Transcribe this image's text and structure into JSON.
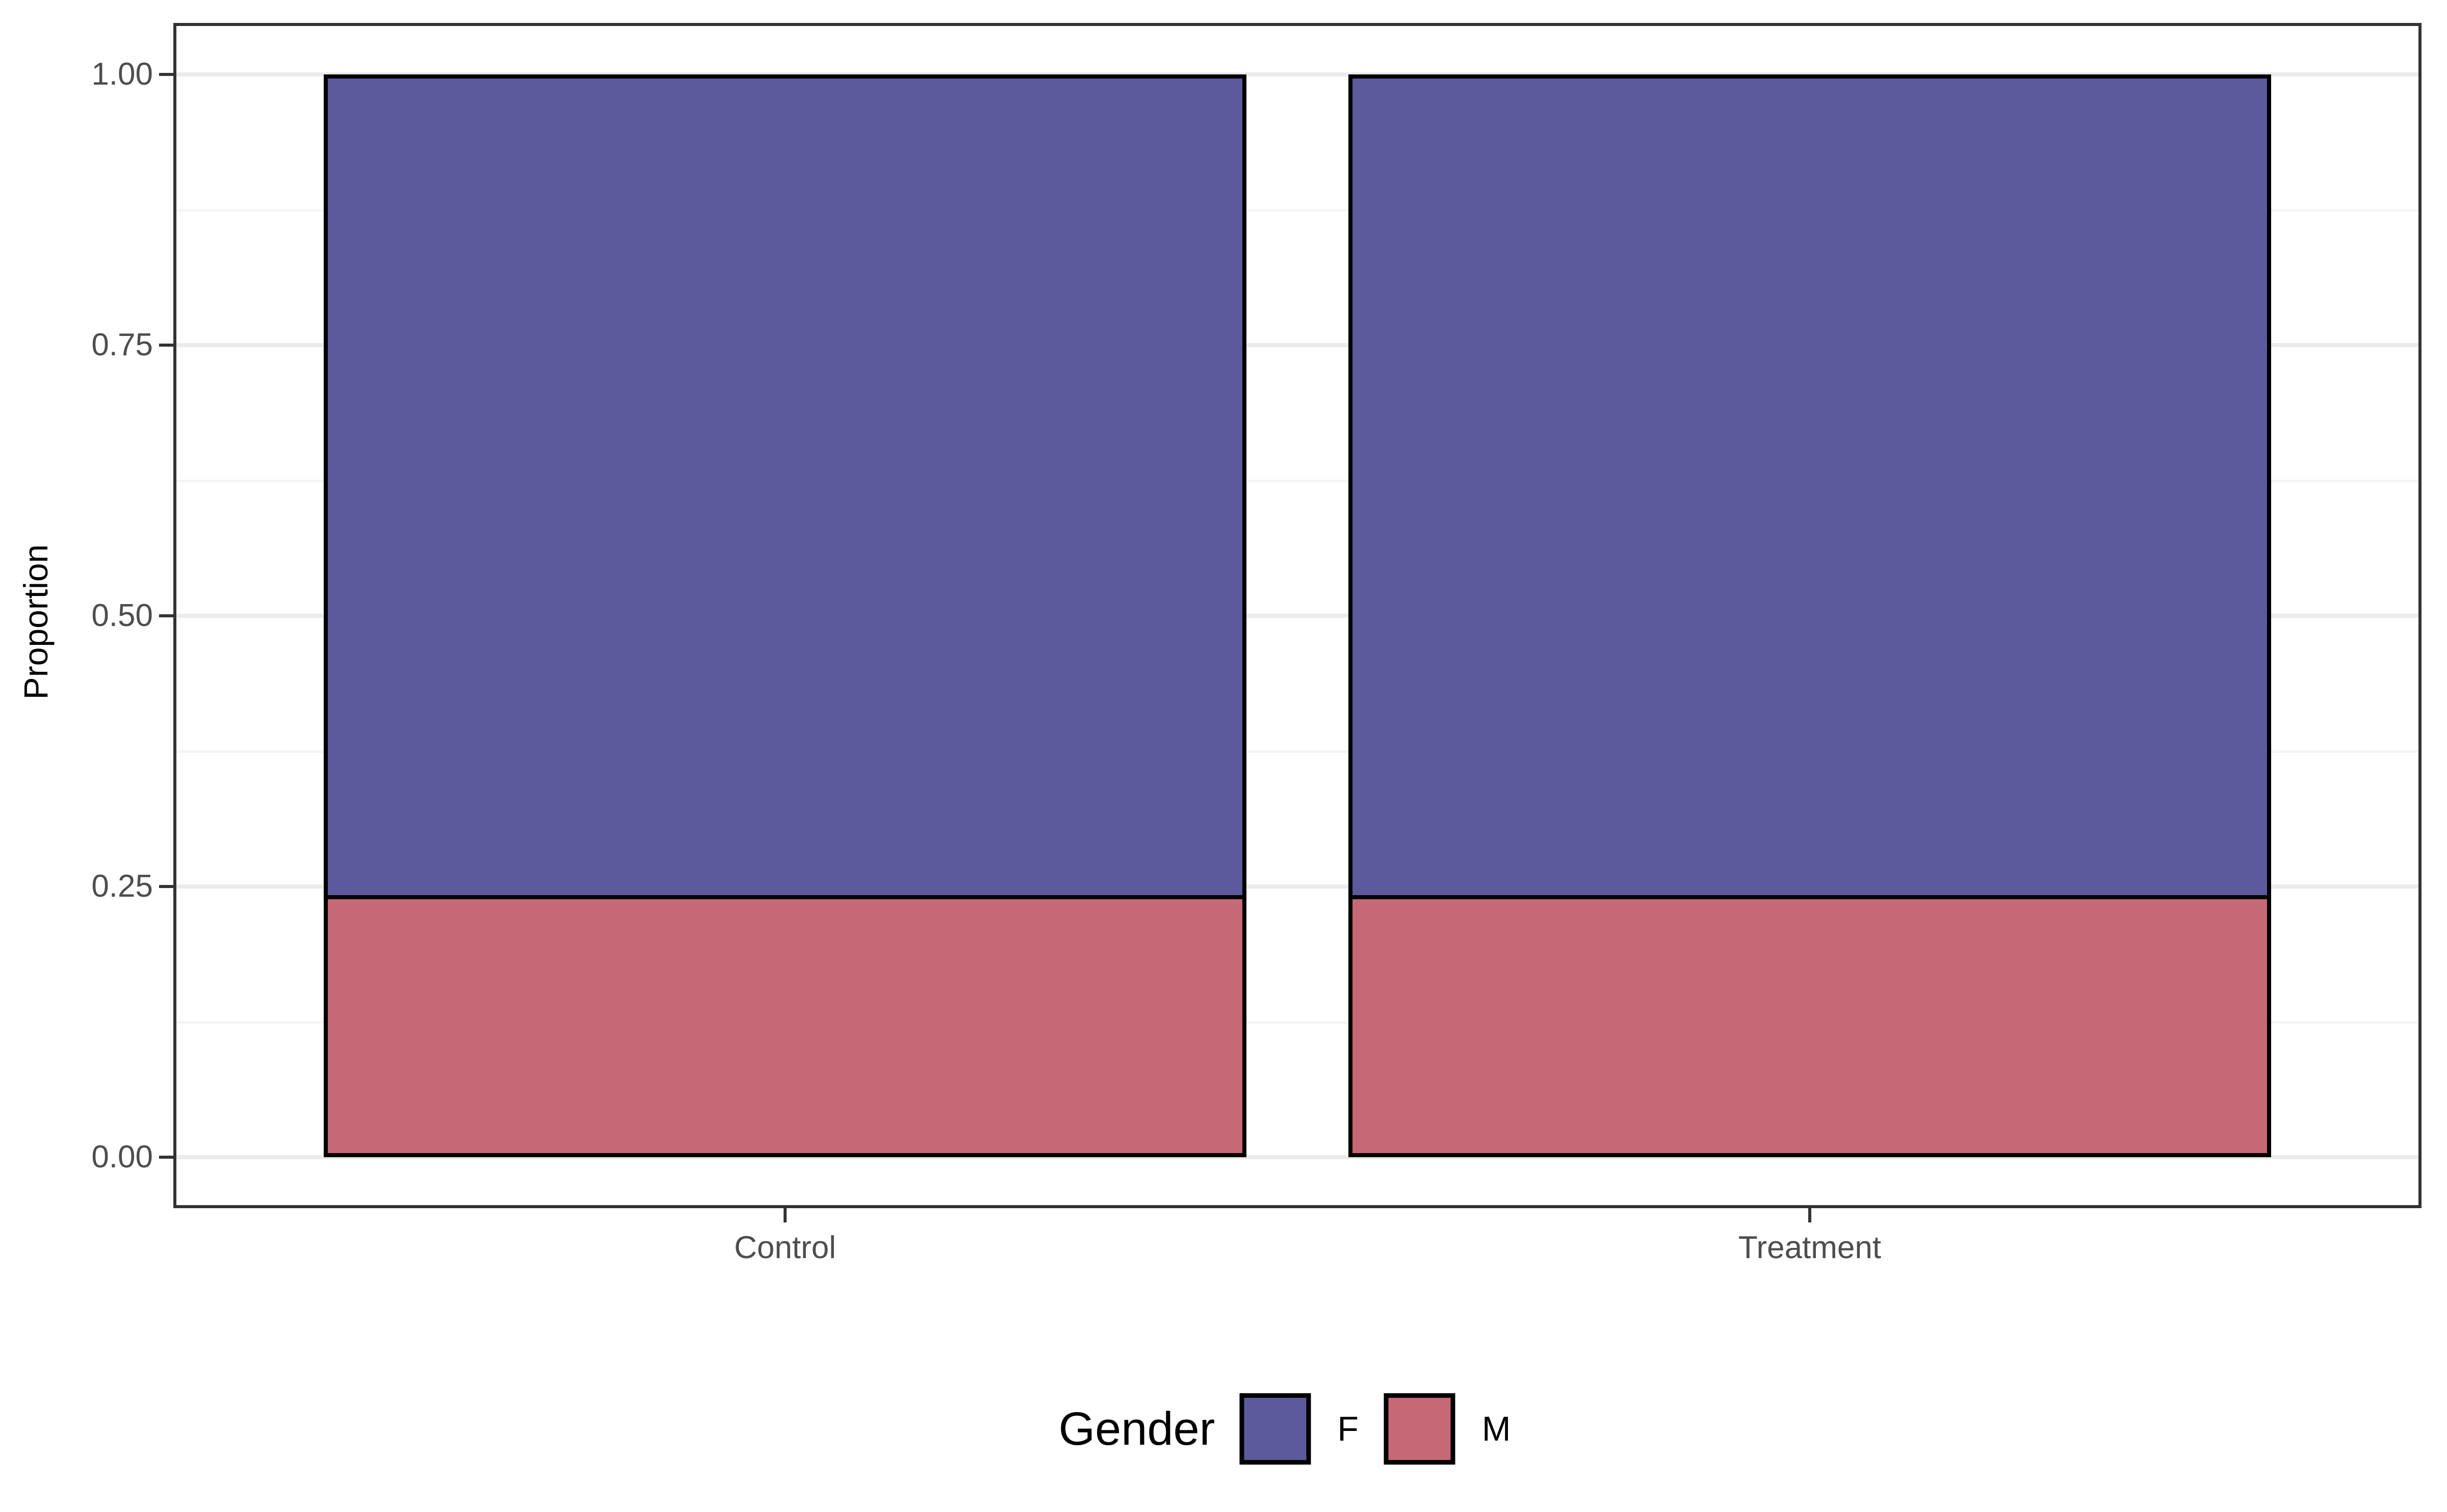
{
  "chart_data": {
    "type": "bar",
    "subtype": "stacked-fill",
    "categories": [
      "Control",
      "Treatment"
    ],
    "series": [
      {
        "name": "F",
        "values": [
          0.76,
          0.76
        ],
        "color": "#5C599C"
      },
      {
        "name": "M",
        "values": [
          0.24,
          0.24
        ],
        "color": "#C66876"
      }
    ],
    "title": "",
    "xlabel": "",
    "ylabel": "Proportion",
    "ylim": [
      0,
      1
    ],
    "y_major_breaks": [
      0,
      0.25,
      0.5,
      0.75,
      1.0
    ],
    "y_minor_breaks": [
      0.125,
      0.375,
      0.625,
      0.875
    ],
    "y_tick_labels": [
      "0.00",
      "0.25",
      "0.50",
      "0.75",
      "1.00"
    ],
    "grid": "on",
    "legend_position": "bottom"
  },
  "legend": {
    "title": "Gender",
    "entries": [
      {
        "label": "F",
        "color": "#5C599C"
      },
      {
        "label": "M",
        "color": "#C66876"
      }
    ]
  },
  "axes": {
    "y_title": "Proportion",
    "x_categories": [
      "Control",
      "Treatment"
    ]
  },
  "colors": {
    "bar_outline": "#000000",
    "panel_border": "#333333",
    "grid_major": "#EBEBEB",
    "grid_minor": "#F4F4F4",
    "tick_label": "#4D4D4D",
    "axis_title": "#000000"
  }
}
